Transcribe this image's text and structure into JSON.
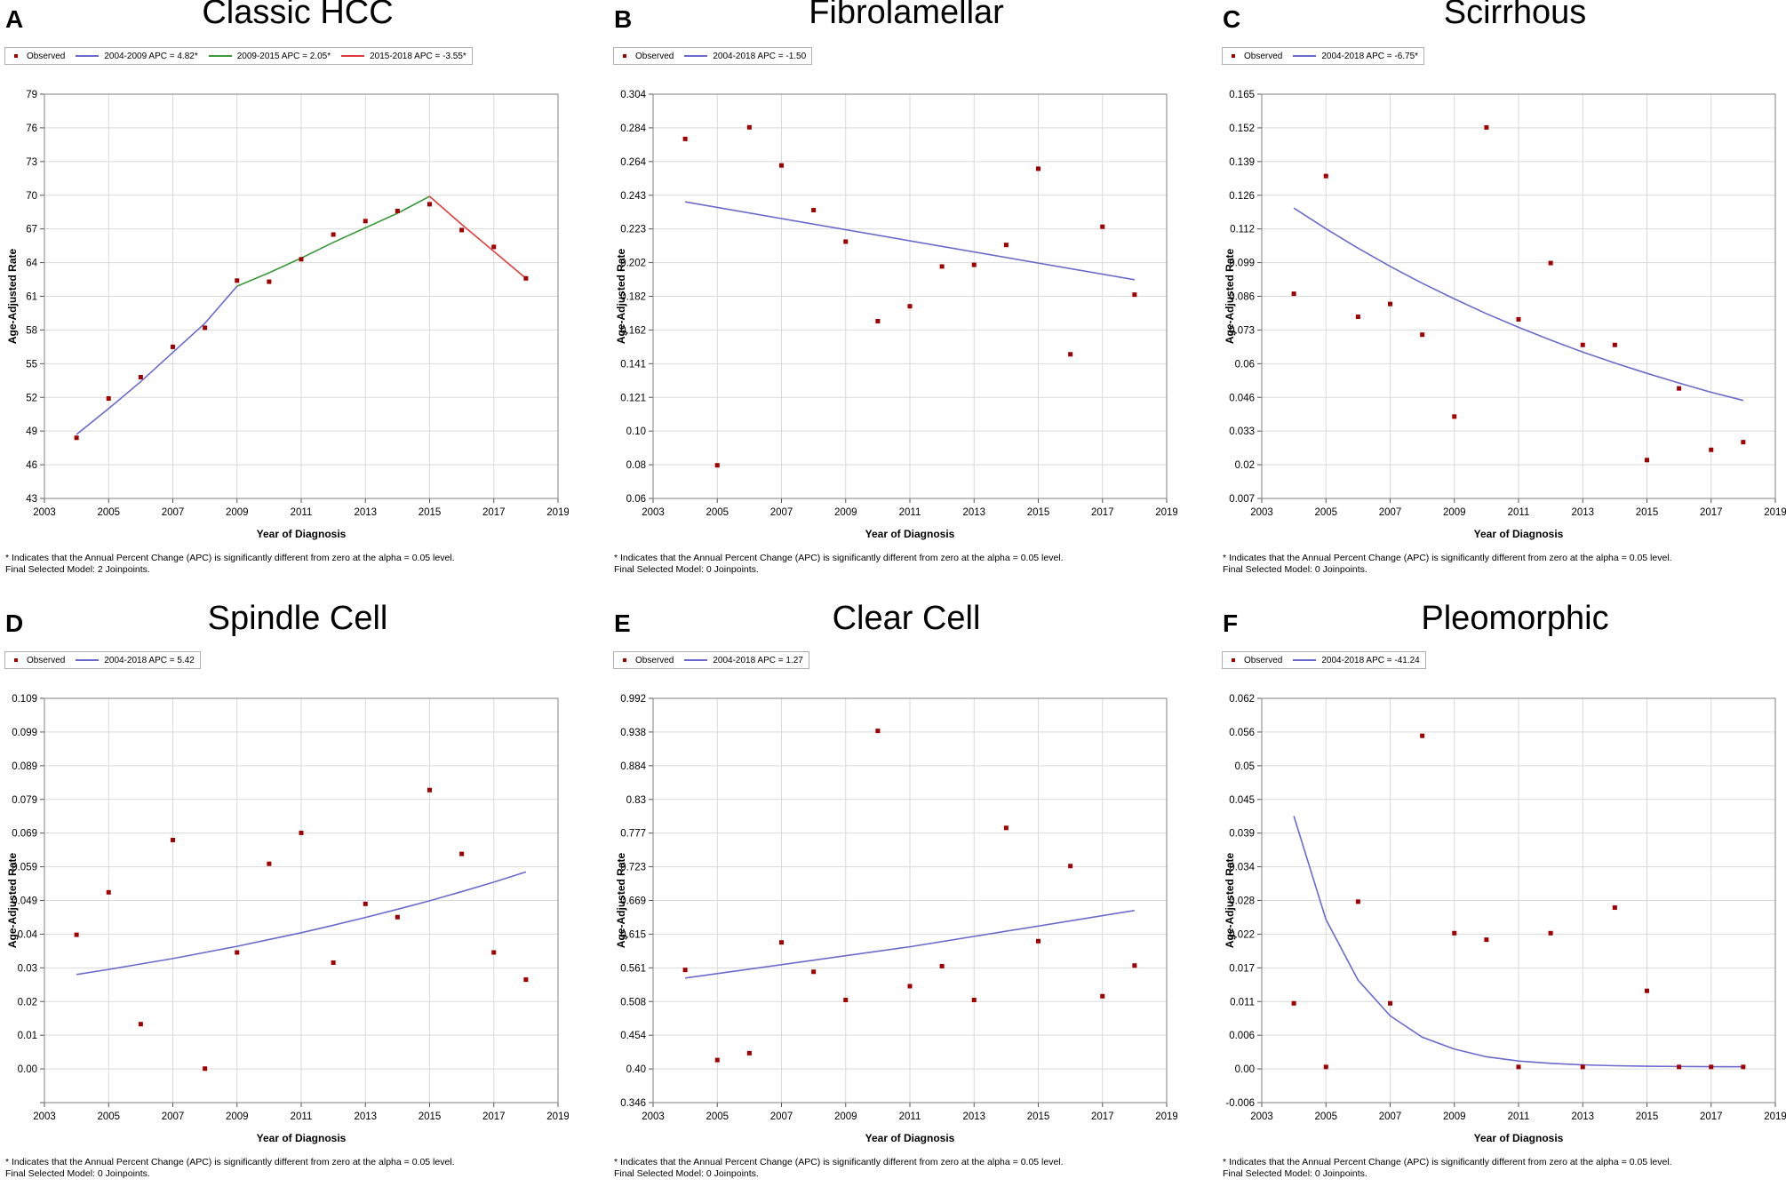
{
  "footnote": {
    "line1": "* Indicates that the Annual Percent Change (APC) is significantly different from zero at the alpha = 0.05 level.",
    "lines2": [
      "Final Selected Model: 2 Joinpoints.",
      "Final Selected Model: 0 Joinpoints.",
      "Final Selected Model: 0 Joinpoints.",
      "Final Selected Model: 0 Joinpoints.",
      "Final Selected Model: 0 Joinpoints.",
      "Final Selected Model: 0 Joinpoints."
    ]
  },
  "colors": {
    "observed": "#a00000",
    "blue": "#6a6acd",
    "green": "#3a9a3a",
    "red": "#e03a3a",
    "grid": "#d9d9d9"
  },
  "panels": [
    {
      "label": "A",
      "title": "Classic HCC",
      "observed_label": "Observed",
      "legend": [
        {
          "text": "2004-2009 APC = 4.82*",
          "color": "blue"
        },
        {
          "text": "2009-2015 APC = 2.05*",
          "color": "green"
        },
        {
          "text": "2015-2018 APC = -3.55*",
          "color": "red"
        }
      ]
    },
    {
      "label": "B",
      "title": "Fibrolamellar",
      "observed_label": "Observed",
      "legend": [
        {
          "text": "2004-2018 APC = -1.50",
          "color": "blue"
        }
      ]
    },
    {
      "label": "C",
      "title": "Scirrhous",
      "observed_label": "Observed",
      "legend": [
        {
          "text": "2004-2018 APC = -6.75*",
          "color": "blue"
        }
      ]
    },
    {
      "label": "D",
      "title": "Spindle Cell",
      "observed_label": "Observed",
      "legend": [
        {
          "text": "2004-2018 APC = 5.42",
          "color": "blue"
        }
      ]
    },
    {
      "label": "E",
      "title": "Clear Cell",
      "observed_label": "Observed",
      "legend": [
        {
          "text": "2004-2018 APC = 1.27",
          "color": "blue"
        }
      ]
    },
    {
      "label": "F",
      "title": "Pleomorphic",
      "observed_label": "Observed",
      "legend": [
        {
          "text": "2004-2018 APC = -41.24",
          "color": "blue"
        }
      ]
    }
  ],
  "chart_data": [
    {
      "type": "line",
      "title": "Classic HCC",
      "xlabel": "Year of Diagnosis",
      "ylabel": "Age-Adjusted Rate",
      "xlim": [
        2003,
        2019
      ],
      "xticks": [
        "2003",
        "2005",
        "2007",
        "2009",
        "2011",
        "2013",
        "2015",
        "2017",
        "2019"
      ],
      "ylim": [
        43,
        79
      ],
      "yticks": [
        "43",
        "46",
        "49",
        "52",
        "55",
        "58",
        "61",
        "64",
        "67",
        "70",
        "73",
        "76",
        "79"
      ],
      "observed": {
        "x": [
          2004,
          2005,
          2006,
          2007,
          2008,
          2009,
          2010,
          2011,
          2012,
          2013,
          2014,
          2015,
          2016,
          2017,
          2018
        ],
        "y": [
          48.4,
          51.9,
          53.8,
          56.5,
          58.2,
          62.4,
          62.3,
          64.3,
          66.5,
          67.7,
          68.6,
          69.2,
          66.9,
          65.4,
          62.6
        ]
      },
      "series": [
        {
          "name": "2004-2009 APC = 4.82*",
          "color": "blue",
          "x": [
            2004,
            2005,
            2006,
            2007,
            2008,
            2009
          ],
          "y": [
            48.7,
            51.0,
            53.4,
            56.0,
            58.6,
            61.9
          ]
        },
        {
          "name": "2009-2015 APC = 2.05*",
          "color": "green",
          "x": [
            2009,
            2010,
            2011,
            2012,
            2013,
            2014,
            2015
          ],
          "y": [
            61.9,
            63.1,
            64.4,
            65.8,
            67.1,
            68.4,
            69.9
          ]
        },
        {
          "name": "2015-2018 APC = -3.55*",
          "color": "red",
          "x": [
            2015,
            2016,
            2017,
            2018
          ],
          "y": [
            69.9,
            67.4,
            65.0,
            62.6
          ]
        }
      ]
    },
    {
      "type": "line",
      "title": "Fibrolamellar",
      "xlabel": "Year of Diagnosis",
      "ylabel": "Age-Adjusted Rate",
      "xlim": [
        2003,
        2019
      ],
      "xticks": [
        "2003",
        "2005",
        "2007",
        "2009",
        "2011",
        "2013",
        "2015",
        "2017",
        "2019"
      ],
      "ylim": [
        0.06,
        0.304
      ],
      "yticks": [
        "0.06",
        "0.08",
        "0.10",
        "0.121",
        "0.141",
        "0.162",
        "0.182",
        "0.202",
        "0.223",
        "0.243",
        "0.264",
        "0.284",
        "0.304"
      ],
      "observed": {
        "x": [
          2004,
          2005,
          2006,
          2007,
          2008,
          2009,
          2010,
          2011,
          2012,
          2013,
          2014,
          2015,
          2016,
          2017,
          2018
        ],
        "y": [
          0.277,
          0.08,
          0.284,
          0.261,
          0.234,
          0.215,
          0.167,
          0.176,
          0.2,
          0.201,
          0.213,
          0.259,
          0.147,
          0.224,
          0.183
        ]
      },
      "series": [
        {
          "name": "2004-2018 APC = -1.50",
          "color": "blue",
          "x": [
            2004,
            2018
          ],
          "y": [
            0.239,
            0.192
          ]
        }
      ]
    },
    {
      "type": "line",
      "title": "Scirrhous",
      "xlabel": "Year of Diagnosis",
      "ylabel": "Age-Adjusted Rate",
      "xlim": [
        2003,
        2019
      ],
      "xticks": [
        "2003",
        "2005",
        "2007",
        "2009",
        "2011",
        "2013",
        "2015",
        "2017",
        "2019"
      ],
      "ylim": [
        0.007,
        0.165
      ],
      "yticks": [
        "0.007",
        "0.02",
        "0.033",
        "0.046",
        "0.06",
        "0.073",
        "0.086",
        "0.099",
        "0.112",
        "0.126",
        "0.139",
        "0.152",
        "0.165"
      ],
      "observed": {
        "x": [
          2004,
          2005,
          2006,
          2007,
          2008,
          2009,
          2010,
          2011,
          2012,
          2013,
          2014,
          2015,
          2016,
          2017,
          2018
        ],
        "y": [
          0.087,
          0.133,
          0.078,
          0.083,
          0.071,
          0.039,
          0.152,
          0.077,
          0.099,
          0.067,
          0.067,
          0.022,
          0.05,
          0.026,
          0.029
        ]
      },
      "series": [
        {
          "name": "2004-2018 APC = -6.75*",
          "color": "blue",
          "x": [
            2004,
            2005,
            2006,
            2007,
            2008,
            2009,
            2010,
            2011,
            2012,
            2013,
            2014,
            2015,
            2016,
            2017,
            2018
          ],
          "y": [
            0.1205,
            0.1124,
            0.1048,
            0.0977,
            0.0911,
            0.085,
            0.0792,
            0.0739,
            0.0689,
            0.0642,
            0.0599,
            0.0559,
            0.0521,
            0.0485,
            0.0453
          ]
        }
      ]
    },
    {
      "type": "line",
      "title": "Spindle Cell",
      "xlabel": "Year of Diagnosis",
      "ylabel": "Age-Adjusted Rate",
      "xlim": [
        2003,
        2019
      ],
      "xticks": [
        "2003",
        "2005",
        "2007",
        "2009",
        "2011",
        "2013",
        "2015",
        "2017",
        "2019"
      ],
      "ylim": [
        -0.01,
        0.109
      ],
      "yticks": [
        "",
        "0.00",
        "0.01",
        "0.02",
        "0.03",
        "0.04",
        "0.049",
        "0.059",
        "0.069",
        "0.079",
        "0.089",
        "0.099",
        "0.109"
      ],
      "observed": {
        "x": [
          2004,
          2005,
          2006,
          2007,
          2008,
          2009,
          2010,
          2011,
          2012,
          2013,
          2014,
          2015,
          2016,
          2017,
          2018
        ],
        "y": [
          0.0394,
          0.0519,
          0.0131,
          0.0673,
          0.0,
          0.0342,
          0.0603,
          0.0694,
          0.0312,
          0.0485,
          0.0446,
          0.082,
          0.0632,
          0.0342,
          0.0262
        ]
      },
      "series": [
        {
          "name": "2004-2018 APC = 5.42",
          "color": "blue",
          "x": [
            2004,
            2005,
            2006,
            2007,
            2008,
            2009,
            2010,
            2011,
            2012,
            2013,
            2014,
            2015,
            2016,
            2017,
            2018
          ],
          "y": [
            0.0277,
            0.0292,
            0.0308,
            0.0324,
            0.0342,
            0.036,
            0.038,
            0.04,
            0.0422,
            0.0445,
            0.0469,
            0.0494,
            0.0521,
            0.0549,
            0.0579
          ]
        }
      ]
    },
    {
      "type": "line",
      "title": "Clear Cell",
      "xlabel": "Year of Diagnosis",
      "ylabel": "Age-Adjusted Rate",
      "xlim": [
        2003,
        2019
      ],
      "xticks": [
        "2003",
        "2005",
        "2007",
        "2009",
        "2011",
        "2013",
        "2015",
        "2017",
        "2019"
      ],
      "ylim": [
        0.346,
        0.992
      ],
      "yticks": [
        "0.346",
        "0.40",
        "0.454",
        "0.508",
        "0.561",
        "0.615",
        "0.669",
        "0.723",
        "0.777",
        "0.83",
        "0.884",
        "0.938",
        "0.992"
      ],
      "observed": {
        "x": [
          2004,
          2005,
          2006,
          2007,
          2008,
          2009,
          2010,
          2011,
          2012,
          2013,
          2014,
          2015,
          2016,
          2017,
          2018
        ],
        "y": [
          0.558,
          0.414,
          0.425,
          0.602,
          0.555,
          0.51,
          0.94,
          0.532,
          0.564,
          0.51,
          0.785,
          0.604,
          0.724,
          0.516,
          0.565
        ]
      },
      "series": [
        {
          "name": "2004-2018 APC = 1.27",
          "color": "blue",
          "x": [
            2004,
            2011,
            2018
          ],
          "y": [
            0.545,
            0.595,
            0.653
          ]
        }
      ]
    },
    {
      "type": "line",
      "title": "Pleomorphic",
      "xlabel": "Year of Diagnosis",
      "ylabel": "Age-Adjusted Rate",
      "xlim": [
        2003,
        2019
      ],
      "xticks": [
        "2003",
        "2005",
        "2007",
        "2009",
        "2011",
        "2013",
        "2015",
        "2017",
        "2019"
      ],
      "ylim": [
        -0.006,
        0.062
      ],
      "yticks": [
        "-0.006",
        "0.00",
        "0.006",
        "0.011",
        "0.017",
        "0.022",
        "0.028",
        "0.034",
        "0.039",
        "0.045",
        "0.05",
        "0.056",
        "0.062"
      ],
      "observed": {
        "x": [
          2004,
          2005,
          2006,
          2007,
          2008,
          2009,
          2010,
          2011,
          2012,
          2013,
          2014,
          2015,
          2016,
          2017,
          2018
        ],
        "y": [
          0.0107,
          0.0,
          0.0278,
          0.0107,
          0.0557,
          0.0225,
          0.0214,
          0.0,
          0.0225,
          0.0,
          0.0268,
          0.0128,
          0.0,
          0.0,
          0.0
        ]
      },
      "series": [
        {
          "name": "2004-2018 APC = -41.24",
          "color": "blue",
          "x": [
            2004,
            2005,
            2006,
            2007,
            2008,
            2009,
            2010,
            2011,
            2012,
            2013,
            2014,
            2015,
            2016,
            2017,
            2018
          ],
          "y": [
            0.0422,
            0.0248,
            0.0146,
            0.0086,
            0.005,
            0.003,
            0.0017,
            0.001,
            0.0006,
            0.00035,
            0.0002,
            0.00012,
            7e-05,
            4e-05,
            2e-05
          ]
        }
      ]
    }
  ]
}
